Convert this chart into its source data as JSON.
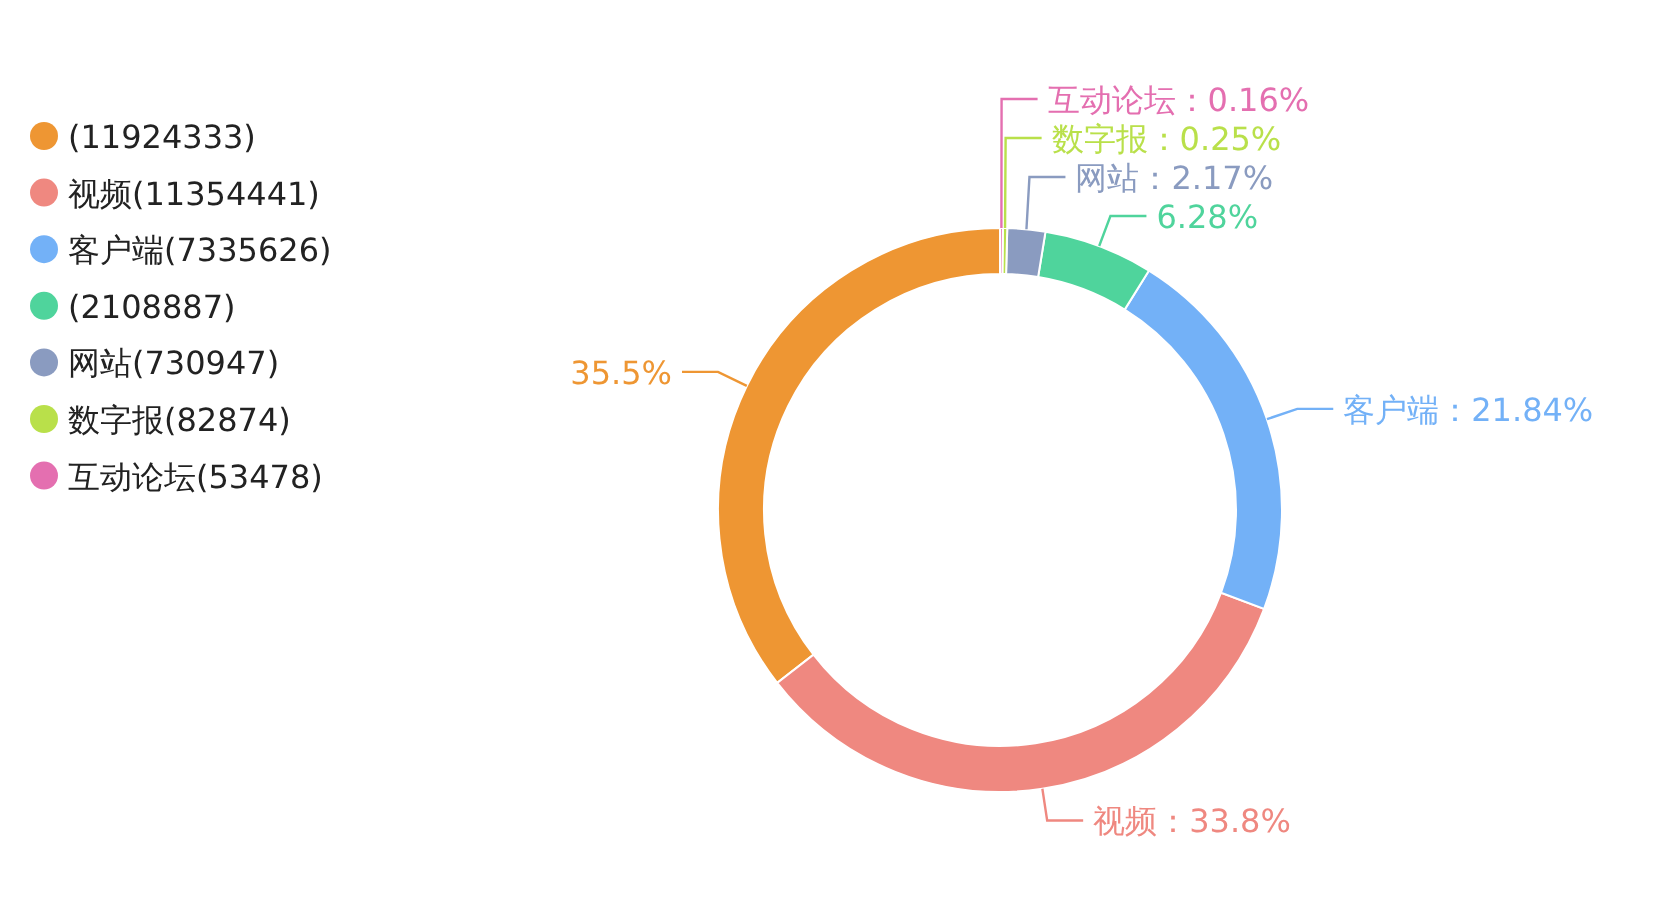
{
  "chart_data": {
    "type": "donut",
    "categories": [
      null,
      "视频",
      "客户端",
      null,
      "网站",
      "数字报",
      "互动论坛"
    ],
    "values": [
      35.5,
      33.8,
      21.84,
      6.28,
      2.17,
      0.25,
      0.16
    ],
    "value_labels": [
      "35.5%",
      "：33.8%",
      "：21.84%",
      "6.28%",
      "：2.17%",
      "：0.25%",
      "：0.16%"
    ],
    "annotations": [
      "(11924333)",
      "(11354441)",
      "(7335626)",
      "(2108887)",
      "(730947)",
      "(82874)",
      "(53478)"
    ],
    "colors": [
      "#ee9633",
      "#ef8880",
      "#73b1f7",
      "#4fd49c",
      "#8a9bc0",
      "#b9e04a",
      "#e46fb0"
    ],
    "legend": "top left"
  }
}
